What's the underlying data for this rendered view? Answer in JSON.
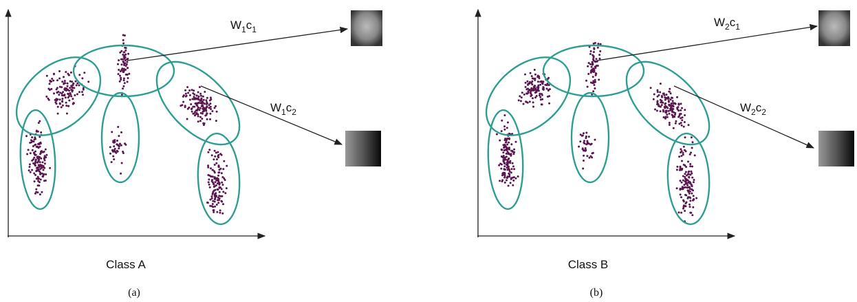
{
  "panels": [
    {
      "class_label": "Class A",
      "caption": "(a)",
      "annotations": [
        {
          "parts": [
            "W",
            "1",
            "c",
            "1"
          ]
        },
        {
          "parts": [
            "W",
            "1",
            "c",
            "2"
          ]
        }
      ]
    },
    {
      "class_label": "Class B",
      "caption": "(b)",
      "annotations": [
        {
          "parts": [
            "W",
            "2",
            "c",
            "1"
          ]
        },
        {
          "parts": [
            "W",
            "2",
            "c",
            "2"
          ]
        }
      ]
    }
  ]
}
